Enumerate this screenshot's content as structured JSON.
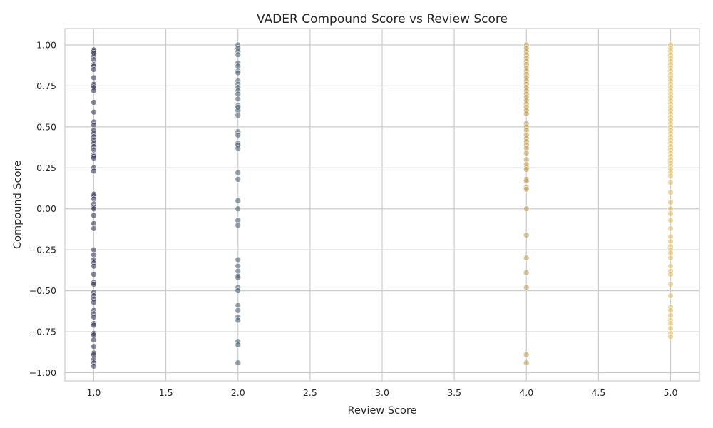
{
  "chart_data": {
    "type": "scatter",
    "title": "VADER Compound Score vs Review Score",
    "xlabel": "Review Score",
    "ylabel": "Compound Score",
    "xlim": [
      0.8,
      5.2
    ],
    "ylim": [
      -1.05,
      1.1
    ],
    "grid": true,
    "xticks": [
      1.0,
      1.5,
      2.0,
      2.5,
      3.0,
      3.5,
      4.0,
      4.5,
      5.0
    ],
    "xtick_labels": [
      "1.0",
      "1.5",
      "2.0",
      "2.5",
      "3.0",
      "3.5",
      "4.0",
      "4.5",
      "5.0"
    ],
    "yticks": [
      1.0,
      0.75,
      0.5,
      0.25,
      0.0,
      -0.25,
      -0.5,
      -0.75,
      -1.0
    ],
    "ytick_labels": [
      "1.00",
      "0.75",
      "0.50",
      "0.25",
      "0.00",
      "−0.25",
      "−0.50",
      "−0.75",
      "−1.00"
    ],
    "series": [
      {
        "color": "#3b3a5e",
        "x": 1.0,
        "y": [
          0.97,
          0.96,
          0.95,
          0.93,
          0.91,
          0.88,
          0.87,
          0.85,
          0.8,
          0.76,
          0.75,
          0.74,
          0.72,
          0.65,
          0.59,
          0.53,
          0.51,
          0.48,
          0.46,
          0.44,
          0.42,
          0.4,
          0.38,
          0.36,
          0.33,
          0.32,
          0.31,
          0.25,
          0.23,
          0.09,
          0.08,
          0.06,
          0.03,
          0.01,
          0.0,
          -0.04,
          -0.09,
          -0.12,
          -0.25,
          -0.28,
          -0.31,
          -0.33,
          -0.35,
          -0.4,
          -0.45,
          -0.46,
          -0.51,
          -0.53,
          -0.55,
          -0.57,
          -0.62,
          -0.64,
          -0.66,
          -0.7,
          -0.71,
          -0.76,
          -0.77,
          -0.8,
          -0.84,
          -0.88,
          -0.89,
          -0.92,
          -0.94,
          -0.96
        ]
      },
      {
        "color": "#4e6675",
        "x": 2.0,
        "y": [
          1.0,
          0.98,
          0.96,
          0.94,
          0.89,
          0.87,
          0.84,
          0.83,
          0.78,
          0.76,
          0.74,
          0.72,
          0.7,
          0.67,
          0.63,
          0.62,
          0.6,
          0.57,
          0.47,
          0.45,
          0.4,
          0.39,
          0.37,
          0.22,
          0.18,
          0.05,
          0.0,
          -0.07,
          -0.1,
          -0.31,
          -0.35,
          -0.38,
          -0.41,
          -0.42,
          -0.48,
          -0.5,
          -0.59,
          -0.62,
          -0.66,
          -0.68,
          -0.81,
          -0.83,
          -0.94
        ]
      },
      {
        "color": "#c9a050",
        "x": 4.0,
        "y": [
          1.0,
          0.98,
          0.96,
          0.94,
          0.92,
          0.9,
          0.88,
          0.86,
          0.84,
          0.82,
          0.8,
          0.78,
          0.76,
          0.74,
          0.72,
          0.7,
          0.68,
          0.66,
          0.64,
          0.62,
          0.6,
          0.58,
          0.52,
          0.5,
          0.48,
          0.45,
          0.43,
          0.41,
          0.39,
          0.37,
          0.34,
          0.3,
          0.27,
          0.25,
          0.24,
          0.18,
          0.17,
          0.13,
          0.12,
          0.0,
          -0.16,
          -0.3,
          -0.39,
          -0.48,
          -0.89,
          -0.94
        ]
      },
      {
        "color": "#e8c066",
        "x": 5.0,
        "y": [
          1.0,
          0.98,
          0.96,
          0.94,
          0.92,
          0.9,
          0.88,
          0.86,
          0.84,
          0.82,
          0.8,
          0.78,
          0.76,
          0.74,
          0.72,
          0.7,
          0.68,
          0.66,
          0.64,
          0.62,
          0.6,
          0.58,
          0.56,
          0.54,
          0.52,
          0.5,
          0.48,
          0.46,
          0.44,
          0.42,
          0.4,
          0.38,
          0.36,
          0.34,
          0.32,
          0.3,
          0.28,
          0.26,
          0.24,
          0.22,
          0.2,
          0.16,
          0.1,
          0.04,
          0.0,
          -0.03,
          -0.07,
          -0.12,
          -0.17,
          -0.2,
          -0.23,
          -0.25,
          -0.27,
          -0.3,
          -0.35,
          -0.38,
          -0.4,
          -0.46,
          -0.53,
          -0.6,
          -0.62,
          -0.65,
          -0.68,
          -0.7,
          -0.73,
          -0.76,
          -0.78
        ]
      }
    ]
  }
}
